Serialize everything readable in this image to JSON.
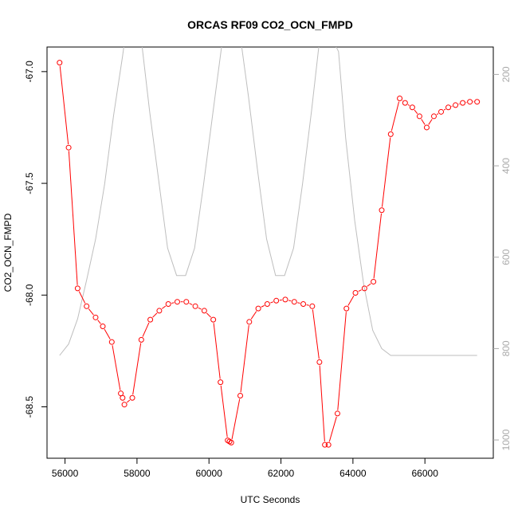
{
  "chart_data": {
    "type": "line",
    "title": "ORCAS RF09 CO2_OCN_FMPD",
    "xlabel": "UTC Seconds",
    "ylabel": "CO2_OCN_FMPD",
    "xlim": [
      55500,
      67900
    ],
    "ylim": [
      -68.73,
      -66.89
    ],
    "y2lim": [
      1040,
      140
    ],
    "x_ticks": [
      56000,
      58000,
      60000,
      62000,
      64000,
      66000
    ],
    "y_ticks": [
      -67.0,
      -67.5,
      -68.0,
      -68.5
    ],
    "y_tick_labels": [
      "-67.0",
      "-67.5",
      "-68.0",
      "-68.5"
    ],
    "y2_ticks": [
      200,
      400,
      600,
      800,
      1000
    ],
    "grid": false,
    "colors": {
      "series": "#ff0000",
      "secondary": "#bebebe"
    },
    "series": [
      {
        "marker": "open-circle",
        "x": [
          55850,
          56100,
          56350,
          56600,
          56850,
          57050,
          57300,
          57550,
          57600,
          57650,
          57870,
          58120,
          58370,
          58620,
          58870,
          59120,
          59370,
          59620,
          59870,
          60120,
          60320,
          60520,
          60570,
          60620,
          60870,
          61120,
          61370,
          61620,
          61870,
          62120,
          62370,
          62620,
          62870,
          63070,
          63220,
          63320,
          63570,
          63820,
          64070,
          64320,
          64570,
          64800,
          65050,
          65300,
          65450,
          65650,
          65850,
          66050,
          66250,
          66450,
          66650,
          66850,
          67050,
          67250,
          67450
        ],
        "y": [
          -66.96,
          -67.34,
          -67.97,
          -68.05,
          -68.1,
          -68.14,
          -68.21,
          -68.44,
          -68.46,
          -68.49,
          -68.46,
          -68.2,
          -68.11,
          -68.07,
          -68.04,
          -68.03,
          -68.03,
          -68.05,
          -68.07,
          -68.11,
          -68.39,
          -68.65,
          -68.655,
          -68.66,
          -68.45,
          -68.12,
          -68.06,
          -68.04,
          -68.025,
          -68.02,
          -68.03,
          -68.04,
          -68.05,
          -68.3,
          -68.67,
          -68.67,
          -68.53,
          -68.06,
          -67.99,
          -67.97,
          -67.94,
          -67.62,
          -67.28,
          -67.12,
          -67.14,
          -67.16,
          -67.2,
          -67.25,
          -67.2,
          -67.18,
          -67.16,
          -67.15,
          -67.14,
          -67.135,
          -67.135
        ]
      },
      {
        "axis": "right",
        "x": [
          55850,
          56100,
          56350,
          56600,
          56850,
          57100,
          57350,
          57600,
          57650,
          57700,
          58100,
          58350,
          58600,
          58850,
          59100,
          59350,
          59600,
          59850,
          60100,
          60350,
          60400,
          60450,
          60850,
          61100,
          61350,
          61600,
          61850,
          62100,
          62350,
          62600,
          62850,
          63050,
          63200,
          63350,
          63600,
          63800,
          64050,
          64300,
          64550,
          64800,
          65050,
          65300,
          65550,
          65800,
          66050,
          66300,
          66550,
          66800,
          67050,
          67300,
          67450
        ],
        "y": [
          815,
          790,
          735,
          650,
          560,
          440,
          290,
          160,
          130,
          110,
          110,
          280,
          430,
          580,
          640,
          640,
          580,
          440,
          290,
          140,
          115,
          105,
          105,
          250,
          410,
          560,
          640,
          640,
          580,
          440,
          280,
          140,
          105,
          110,
          150,
          340,
          520,
          660,
          760,
          800,
          815,
          815,
          815,
          815,
          815,
          815,
          815,
          815,
          815,
          815,
          815
        ]
      }
    ]
  }
}
